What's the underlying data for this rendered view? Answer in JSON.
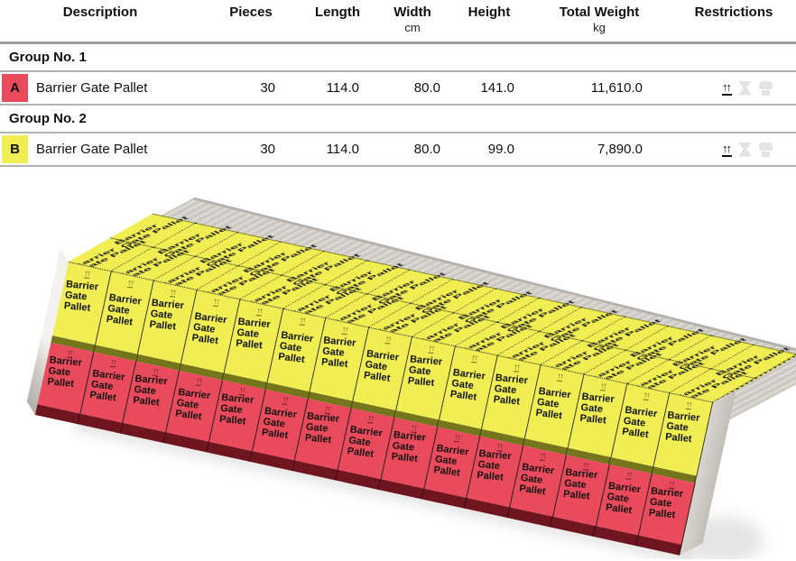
{
  "table": {
    "columns": [
      {
        "label": "Description",
        "unit": ""
      },
      {
        "label": "Pieces",
        "unit": ""
      },
      {
        "label": "Length",
        "unit": ""
      },
      {
        "label": "Width",
        "unit": "cm"
      },
      {
        "label": "Height",
        "unit": ""
      },
      {
        "label": "Total Weight",
        "unit": "kg"
      },
      {
        "label": "Restrictions",
        "unit": ""
      }
    ],
    "groups": [
      {
        "header": "Group No. 1",
        "row": {
          "badge": "A",
          "badge_color": "#e94a5c",
          "description": "Barrier Gate Pallet",
          "pieces": "30",
          "length": "114.0",
          "width": "80.0",
          "height": "141.0",
          "total_weight": "11,610.0",
          "restrictions": [
            {
              "name": "this-way-up",
              "active": true
            },
            {
              "name": "stacking",
              "active": false
            },
            {
              "name": "hanging",
              "active": false
            }
          ]
        }
      },
      {
        "header": "Group No. 2",
        "row": {
          "badge": "B",
          "badge_color": "#f0ee52",
          "description": "Barrier Gate Pallet",
          "pieces": "30",
          "length": "114.0",
          "width": "80.0",
          "height": "99.0",
          "total_weight": "7,890.0",
          "restrictions": [
            {
              "name": "this-way-up",
              "active": true
            },
            {
              "name": "stacking",
              "active": false
            },
            {
              "name": "hanging",
              "active": false
            }
          ]
        }
      }
    ]
  },
  "scene": {
    "cargo_label": "Barrier Gate Pallet",
    "up_arrows_mark": "↑↑",
    "front_columns": 15,
    "top_columns": 15,
    "top_depth_rows": 2,
    "top_layer_group": "B",
    "bottom_layer_group": "A",
    "colors": {
      "cargoYellow": "#f0ee52",
      "cargoRed": "#e94a5c",
      "baseOlive": "#75751c",
      "baseMaroon": "#6e1520",
      "wall": "#d6d3cc"
    }
  }
}
